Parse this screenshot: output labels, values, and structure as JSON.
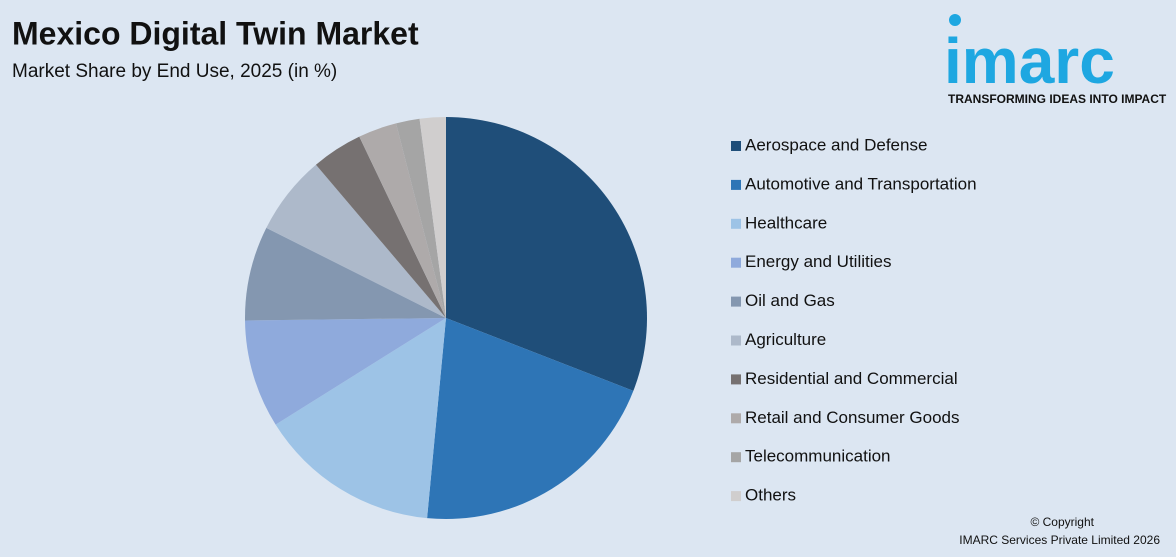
{
  "chart_data": {
    "type": "pie",
    "title": "Mexico Digital Twin Market",
    "subtitle": "Market Share by End Use, 2025 (in %)",
    "categories": [
      "Aerospace and Defense",
      "Automotive and Transportation",
      "Healthcare",
      "Energy and Utilities",
      "Oil and Gas",
      "Agriculture",
      "Residential and Commercial",
      "Retail and Consumer Goods",
      "Telecommunication",
      "Others"
    ],
    "values": [
      30.9,
      20.6,
      14.6,
      8.7,
      7.6,
      6.4,
      4.1,
      3.1,
      1.9,
      2.1
    ],
    "colors": [
      "#1f4e79",
      "#2e75b6",
      "#9dc3e6",
      "#8faadc",
      "#8497b0",
      "#adb9ca",
      "#767171",
      "#aeaaaa",
      "#a5a5a5",
      "#d0cece"
    ],
    "legend": "right"
  },
  "logo": {
    "name": "imarc",
    "tagline": "TRANSFORMING IDEAS INTO IMPACT"
  },
  "copyright": [
    "© Copyright",
    "IMARC Services Private Limited 2026"
  ]
}
